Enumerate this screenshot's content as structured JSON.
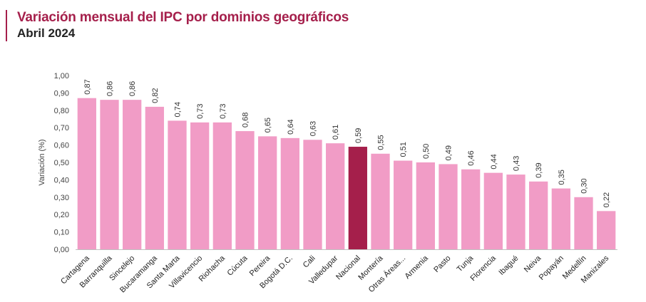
{
  "header": {
    "title": "Variación mensual del IPC por dominios geográficos",
    "subtitle": "Abril 2024"
  },
  "chart_data": {
    "type": "bar",
    "title": "Variación mensual del IPC por dominios geográficos",
    "subtitle": "Abril 2024",
    "xlabel": "",
    "ylabel": "Variación (%)",
    "ylim": [
      0,
      1.0
    ],
    "yticks": [
      "0,00",
      "0,10",
      "0,20",
      "0,30",
      "0,40",
      "0,50",
      "0,60",
      "0,70",
      "0,80",
      "0,90",
      "1,00"
    ],
    "grid": false,
    "legend": "none",
    "categories": [
      "Cartagena",
      "Barranquilla",
      "Sincelejo",
      "Bucaramanga",
      "Santa Marta",
      "Villavicencio",
      "Riohacha",
      "Cúcuta",
      "Pereira",
      "Bogotá D.C.",
      "Cali",
      "Valledupar",
      "Nacional",
      "Montería",
      "Otras Áreas...",
      "Armenia",
      "Pasto",
      "Tunja",
      "Florencia",
      "Ibagué",
      "Neiva",
      "Popayán",
      "Medellín",
      "Manizales"
    ],
    "values": [
      0.87,
      0.86,
      0.86,
      0.82,
      0.74,
      0.73,
      0.73,
      0.68,
      0.65,
      0.64,
      0.63,
      0.61,
      0.59,
      0.55,
      0.51,
      0.5,
      0.49,
      0.46,
      0.44,
      0.43,
      0.39,
      0.35,
      0.3,
      0.22
    ],
    "value_labels": [
      "0,87",
      "0,86",
      "0,86",
      "0,82",
      "0,74",
      "0,73",
      "0,73",
      "0,68",
      "0,65",
      "0,64",
      "0,63",
      "0,61",
      "0,59",
      "0,55",
      "0,51",
      "0,50",
      "0,49",
      "0,46",
      "0,44",
      "0,43",
      "0,39",
      "0,35",
      "0,30",
      "0,22"
    ],
    "highlight_category": "Nacional",
    "colors": {
      "bar": "#f19cc6",
      "highlight": "#a51f4b",
      "axis": "#bfbfbf",
      "title": "#a51f4b"
    }
  }
}
